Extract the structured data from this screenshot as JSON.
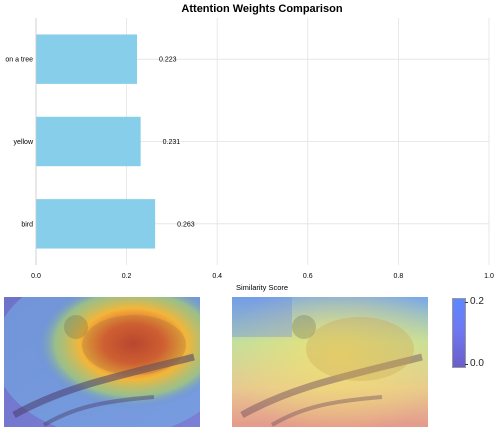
{
  "chart_data": {
    "type": "bar",
    "orientation": "horizontal",
    "title": "Attention Weights Comparison",
    "xlabel": "Similarity Score",
    "ylabel": "",
    "categories": [
      "bird",
      "yellow",
      "on a tree"
    ],
    "values": [
      0.263,
      0.231,
      0.223
    ],
    "data_labels": [
      "0.263",
      "0.231",
      "0.223"
    ],
    "xlim": [
      0,
      1
    ],
    "xticks": [
      "0.0",
      "0.2",
      "0.4",
      "0.6",
      "0.8",
      "1.0"
    ],
    "grid": true,
    "bar_color": "#87ceeb"
  },
  "heatmaps": {
    "left": {
      "subject": "bird on a tree branch",
      "attention": "focused on the bird's body"
    },
    "right": {
      "subject": "bird on a tree branch",
      "attention": "diffuse over the whole image"
    },
    "colorbar": {
      "max_label": "0.2",
      "min_label": "0.0",
      "colors": [
        "#5d88ff",
        "#6a5fc8"
      ]
    }
  }
}
